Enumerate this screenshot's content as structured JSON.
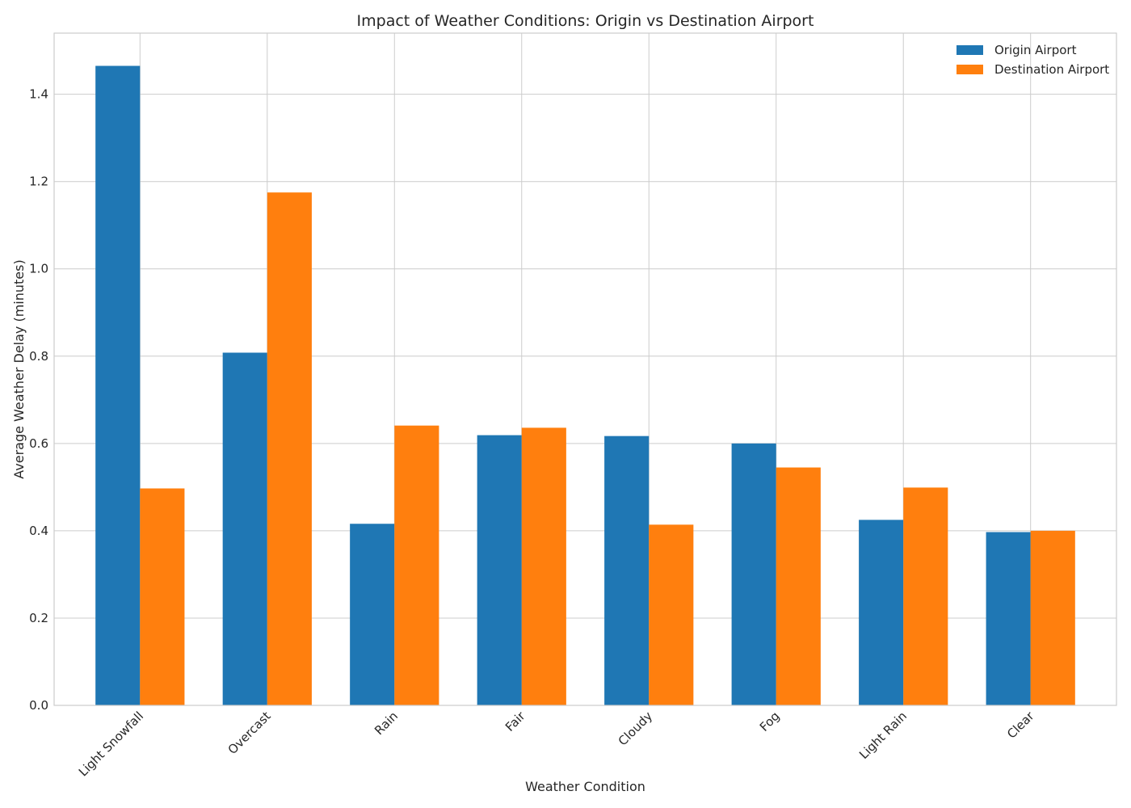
{
  "chart_data": {
    "type": "bar",
    "title": "Impact of Weather Conditions: Origin vs Destination Airport",
    "xlabel": "Weather Condition",
    "ylabel": "Average Weather Delay (minutes)",
    "categories": [
      "Light Snowfall",
      "Overcast",
      "Rain",
      "Fair",
      "Cloudy",
      "Fog",
      "Light Rain",
      "Clear"
    ],
    "series": [
      {
        "name": "Origin Airport",
        "color": "#1f77b4",
        "values": [
          1.465,
          0.808,
          0.416,
          0.619,
          0.617,
          0.6,
          0.425,
          0.397
        ]
      },
      {
        "name": "Destination Airport",
        "color": "#ff7f0e",
        "values": [
          0.497,
          1.175,
          0.641,
          0.636,
          0.414,
          0.545,
          0.499,
          0.4
        ]
      }
    ],
    "ylim": [
      0,
      1.54
    ],
    "yticks": [
      0.0,
      0.2,
      0.4,
      0.6,
      0.8,
      1.0,
      1.2,
      1.4
    ],
    "ytick_labels": [
      "0.0",
      "0.2",
      "0.4",
      "0.6",
      "0.8",
      "1.0",
      "1.2",
      "1.4"
    ],
    "grid": true,
    "legend_position": "top-right"
  }
}
